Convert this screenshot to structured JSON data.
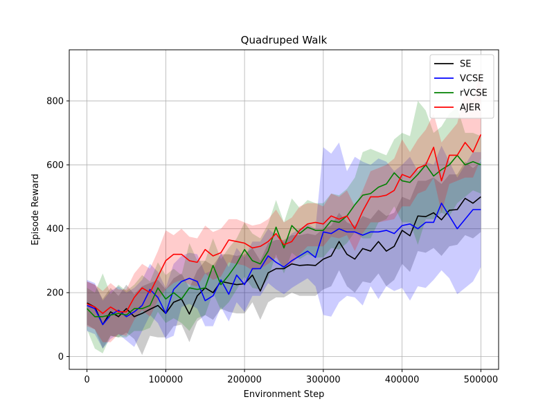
{
  "chart_data": {
    "type": "line",
    "title": "Quadruped Walk",
    "xlabel": "Environment Step",
    "ylabel": "Episode Reward",
    "xlim": [
      -22500,
      522500
    ],
    "ylim": [
      -40,
      960
    ],
    "xticks": [
      0,
      100000,
      200000,
      300000,
      400000,
      500000
    ],
    "xtick_labels": [
      "0",
      "100000",
      "200000",
      "300000",
      "400000",
      "500000"
    ],
    "yticks": [
      0,
      200,
      400,
      600,
      800
    ],
    "ytick_labels": [
      "0",
      "200",
      "400",
      "600",
      "800"
    ],
    "grid": true,
    "legend_position": "top-right",
    "x": [
      0,
      10000,
      20000,
      30000,
      40000,
      50000,
      60000,
      70000,
      80000,
      90000,
      100000,
      110000,
      120000,
      130000,
      140000,
      150000,
      160000,
      170000,
      180000,
      190000,
      200000,
      210000,
      220000,
      230000,
      240000,
      250000,
      260000,
      270000,
      280000,
      290000,
      300000,
      310000,
      320000,
      330000,
      340000,
      350000,
      360000,
      370000,
      380000,
      390000,
      400000,
      410000,
      420000,
      430000,
      440000,
      450000,
      460000,
      470000,
      480000,
      490000,
      500000
    ],
    "series": [
      {
        "name": "SE",
        "color": "#000000",
        "values": [
          168,
          155,
          100,
          140,
          125,
          150,
          125,
          135,
          148,
          160,
          135,
          170,
          180,
          133,
          190,
          215,
          200,
          235,
          230,
          225,
          228,
          255,
          205,
          262,
          275,
          275,
          290,
          285,
          287,
          285,
          305,
          315,
          360,
          320,
          305,
          338,
          330,
          360,
          330,
          345,
          395,
          378,
          440,
          438,
          450,
          428,
          458,
          460,
          495,
          480,
          500
        ],
        "upper": [
          235,
          225,
          180,
          215,
          190,
          225,
          195,
          220,
          230,
          240,
          210,
          245,
          260,
          215,
          270,
          300,
          285,
          320,
          320,
          315,
          320,
          340,
          300,
          355,
          365,
          365,
          380,
          380,
          385,
          380,
          400,
          410,
          450,
          420,
          410,
          440,
          430,
          460,
          440,
          450,
          500,
          490,
          550,
          550,
          560,
          540,
          570,
          570,
          610,
          590,
          610
        ],
        "lower": [
          100,
          85,
          25,
          65,
          60,
          75,
          55,
          5,
          65,
          60,
          60,
          95,
          100,
          45,
          110,
          130,
          115,
          150,
          140,
          135,
          135,
          170,
          115,
          170,
          185,
          185,
          200,
          190,
          190,
          190,
          210,
          220,
          270,
          220,
          200,
          235,
          230,
          260,
          220,
          240,
          290,
          265,
          330,
          325,
          340,
          315,
          345,
          350,
          380,
          370,
          390
        ]
      },
      {
        "name": "VCSE",
        "color": "#0000ff",
        "values": [
          160,
          150,
          100,
          130,
          145,
          125,
          140,
          160,
          210,
          185,
          135,
          210,
          235,
          245,
          235,
          175,
          190,
          240,
          195,
          255,
          225,
          275,
          275,
          315,
          295,
          280,
          300,
          315,
          330,
          310,
          390,
          385,
          400,
          390,
          390,
          380,
          390,
          390,
          395,
          385,
          410,
          415,
          400,
          420,
          420,
          480,
          440,
          400,
          430,
          460,
          460
        ],
        "upper": [
          240,
          230,
          175,
          205,
          220,
          200,
          215,
          240,
          290,
          265,
          215,
          290,
          315,
          325,
          320,
          260,
          270,
          325,
          280,
          340,
          310,
          360,
          360,
          400,
          380,
          360,
          385,
          400,
          415,
          400,
          655,
          635,
          670,
          580,
          625,
          610,
          600,
          620,
          610,
          580,
          600,
          625,
          580,
          610,
          600,
          660,
          610,
          560,
          600,
          640,
          640
        ],
        "lower": [
          80,
          70,
          25,
          55,
          70,
          50,
          30,
          80,
          130,
          105,
          55,
          65,
          155,
          165,
          150,
          95,
          95,
          155,
          110,
          170,
          140,
          190,
          190,
          230,
          210,
          195,
          215,
          230,
          245,
          220,
          130,
          125,
          170,
          190,
          185,
          160,
          220,
          180,
          220,
          205,
          215,
          175,
          220,
          215,
          240,
          270,
          245,
          195,
          215,
          235,
          280
        ]
      },
      {
        "name": "rVCSE",
        "color": "#008000",
        "values": [
          150,
          125,
          125,
          130,
          135,
          130,
          150,
          150,
          160,
          215,
          180,
          200,
          180,
          215,
          210,
          215,
          285,
          225,
          255,
          290,
          335,
          300,
          290,
          330,
          405,
          340,
          410,
          385,
          405,
          395,
          395,
          425,
          420,
          440,
          475,
          505,
          510,
          530,
          540,
          575,
          550,
          545,
          570,
          600,
          565,
          585,
          600,
          630,
          600,
          610,
          600
        ],
        "upper": [
          215,
          200,
          260,
          195,
          225,
          205,
          225,
          255,
          235,
          295,
          255,
          275,
          255,
          355,
          300,
          300,
          370,
          305,
          340,
          370,
          420,
          385,
          370,
          415,
          490,
          420,
          495,
          465,
          490,
          480,
          480,
          510,
          505,
          525,
          560,
          640,
          650,
          640,
          630,
          680,
          700,
          690,
          800,
          770,
          700,
          720,
          760,
          780,
          700,
          700,
          690
        ],
        "lower": [
          85,
          25,
          10,
          65,
          60,
          60,
          80,
          80,
          90,
          140,
          105,
          120,
          105,
          80,
          120,
          130,
          200,
          145,
          170,
          210,
          250,
          215,
          210,
          245,
          320,
          260,
          325,
          305,
          320,
          310,
          310,
          340,
          335,
          355,
          390,
          370,
          370,
          420,
          430,
          470,
          420,
          420,
          350,
          430,
          430,
          450,
          440,
          480,
          500,
          520,
          510
        ]
      },
      {
        "name": "AJER",
        "color": "#ff0000",
        "values": [
          165,
          155,
          135,
          155,
          140,
          140,
          185,
          215,
          200,
          250,
          300,
          320,
          320,
          300,
          295,
          335,
          315,
          325,
          365,
          360,
          355,
          340,
          345,
          360,
          385,
          350,
          360,
          395,
          415,
          420,
          415,
          440,
          430,
          440,
          400,
          455,
          500,
          500,
          505,
          520,
          570,
          560,
          590,
          600,
          655,
          550,
          630,
          630,
          670,
          640,
          695
        ],
        "upper": [
          235,
          225,
          205,
          230,
          210,
          210,
          260,
          290,
          275,
          330,
          395,
          380,
          400,
          375,
          370,
          410,
          390,
          400,
          430,
          430,
          420,
          410,
          415,
          430,
          460,
          420,
          435,
          470,
          480,
          480,
          470,
          510,
          500,
          520,
          470,
          520,
          580,
          590,
          600,
          620,
          680,
          640,
          680,
          710,
          760,
          670,
          700,
          730,
          830,
          800,
          900
        ],
        "lower": [
          95,
          85,
          45,
          45,
          70,
          65,
          115,
          145,
          125,
          175,
          210,
          230,
          240,
          225,
          220,
          260,
          240,
          250,
          295,
          290,
          285,
          270,
          275,
          290,
          310,
          280,
          290,
          320,
          345,
          345,
          345,
          375,
          370,
          380,
          330,
          385,
          420,
          420,
          425,
          430,
          470,
          470,
          510,
          520,
          560,
          450,
          540,
          550,
          560,
          560,
          620
        ]
      }
    ]
  }
}
